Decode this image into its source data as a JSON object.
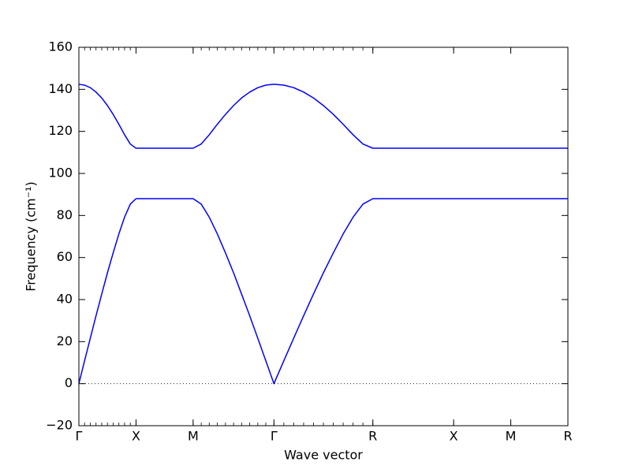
{
  "chart_data": {
    "type": "line",
    "xlabel": "Wave vector",
    "ylabel": "Frequency (cm⁻¹)",
    "x": [
      0,
      0.05,
      0.1,
      0.15,
      0.2,
      0.25,
      0.3,
      0.35,
      0.4,
      0.45,
      0.5,
      1.0,
      1.071,
      1.141,
      1.212,
      1.283,
      1.354,
      1.424,
      1.495,
      1.566,
      1.636,
      1.707,
      1.794,
      1.88,
      1.967,
      2.053,
      2.14,
      2.227,
      2.313,
      2.4,
      2.486,
      2.573,
      3.28,
      3.78,
      4.28
    ],
    "series": [
      {
        "color": "#0000ff",
        "values": [
          0,
          10.9,
          21.6,
          32.3,
          42.6,
          52.7,
          62.2,
          71.2,
          79.2,
          85.4,
          88,
          88,
          85.4,
          79.2,
          71.2,
          62.2,
          52.7,
          42.6,
          32.3,
          21.6,
          10.9,
          0,
          10.9,
          21.6,
          32.3,
          42.6,
          52.7,
          62.2,
          71.2,
          79.2,
          85.4,
          88,
          88,
          88,
          88
        ]
      },
      {
        "color": "#0000ff",
        "values": [
          142.4,
          142.0,
          140.8,
          138.7,
          135.9,
          132.3,
          128.1,
          123.4,
          118.4,
          114.0,
          112,
          112,
          114.0,
          118.4,
          123.4,
          128.1,
          132.3,
          135.9,
          138.7,
          140.8,
          142.0,
          142.4,
          142.0,
          140.8,
          138.7,
          135.9,
          132.3,
          128.1,
          123.4,
          118.4,
          114.0,
          112,
          112,
          112,
          112
        ]
      }
    ],
    "xlim": [
      0,
      4.28
    ],
    "xticks": [
      {
        "value": 0,
        "label": "Γ"
      },
      {
        "value": 0.5,
        "label": "X"
      },
      {
        "value": 1.0,
        "label": "M"
      },
      {
        "value": 1.707,
        "label": "Γ"
      },
      {
        "value": 2.573,
        "label": "R"
      },
      {
        "value": 3.28,
        "label": "X"
      },
      {
        "value": 3.78,
        "label": "M"
      },
      {
        "value": 4.28,
        "label": "R"
      }
    ],
    "ylim": [
      -20,
      160
    ],
    "yticks": [
      {
        "value": -20,
        "label": "−20"
      },
      0,
      20,
      40,
      60,
      80,
      100,
      120,
      140,
      160
    ],
    "hline": 0
  }
}
